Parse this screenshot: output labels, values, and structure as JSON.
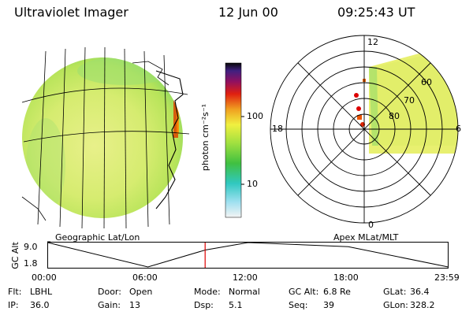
{
  "header": {
    "instrument": "Ultraviolet Imager",
    "date": "12 Jun 00",
    "time": "09:25:43 UT"
  },
  "colorbar": {
    "unit_label": "photon cm⁻²s⁻¹",
    "ticks": [
      "100",
      "10"
    ],
    "scale": "log"
  },
  "polar_plot": {
    "mlt_labels": [
      "12",
      "18",
      "6",
      "0"
    ],
    "lat_labels": [
      "60",
      "70",
      "80"
    ]
  },
  "projection_labels": {
    "left": "Geographic Lat/Lon",
    "right": "Apex MLat/MLT"
  },
  "altitude_strip": {
    "ylabel": "GC Alt",
    "yticks": [
      "9.0",
      "1.8"
    ],
    "xticks": [
      "00:00",
      "06:00",
      "12:00",
      "18:00",
      "23:59"
    ]
  },
  "chart_data": {
    "type": "line",
    "ylabel": "GC Alt",
    "x": [
      "00:00",
      "06:00",
      "09:26",
      "12:00",
      "18:00",
      "23:59"
    ],
    "values": [
      9.0,
      1.8,
      6.8,
      9.0,
      7.8,
      1.8
    ],
    "ylim": [
      1.8,
      9.0
    ],
    "marker_time": "09:25:43"
  },
  "info_rows": [
    [
      {
        "label": "Flt:",
        "value": "LBHL"
      },
      {
        "label": "Door:",
        "value": "Open"
      },
      {
        "label": "Mode:",
        "value": "Normal"
      },
      {
        "label": "GC Alt:",
        "value": "6.8 Re"
      },
      {
        "label": "GLat:",
        "value": "36.4"
      }
    ],
    [
      {
        "label": "IP:",
        "value": "36.0"
      },
      {
        "label": "Gain:",
        "value": "13"
      },
      {
        "label": "Dsp:",
        "value": "5.1"
      },
      {
        "label": "Seq:",
        "value": "39"
      },
      {
        "label": "GLon:",
        "value": "328.2"
      }
    ]
  ],
  "colors": {
    "background": "#ffffff",
    "marker": "#dd0000",
    "auroral_base": "#e6f060"
  }
}
